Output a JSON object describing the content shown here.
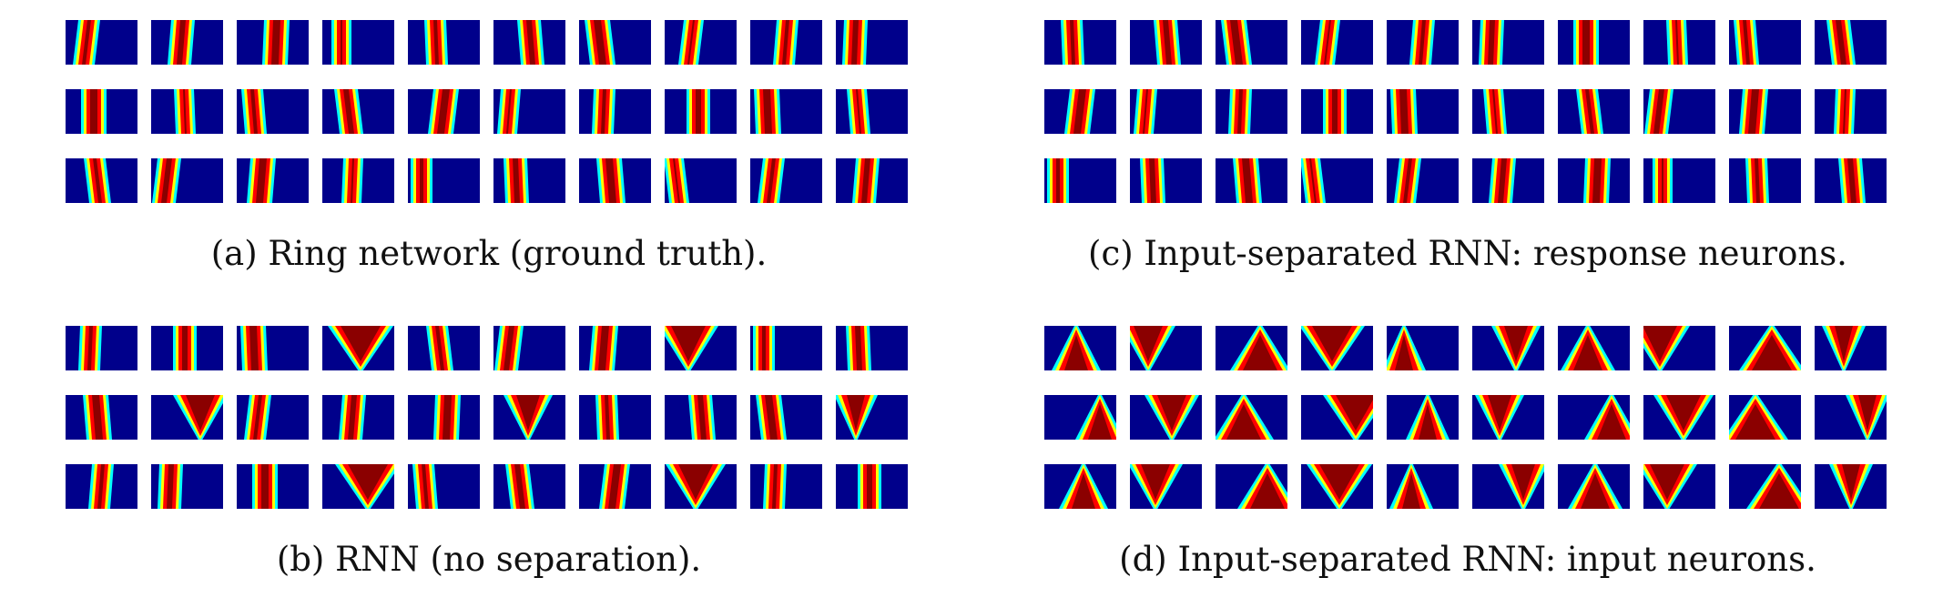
{
  "figure": {
    "panels": [
      {
        "id": "a",
        "caption": "(a) Ring network (ground truth).",
        "kind": "stripe",
        "rows": 3,
        "cols": 10
      },
      {
        "id": "b",
        "caption": "(b) RNN (no separation).",
        "kind": "mixed",
        "rows": 3,
        "cols": 10
      },
      {
        "id": "c",
        "caption": "(c) Input-separated RNN: response neurons.",
        "kind": "stripe",
        "rows": 3,
        "cols": 10
      },
      {
        "id": "d",
        "caption": "(d) Input-separated RNN: input neurons.",
        "kind": "wave",
        "rows": 3,
        "cols": 10
      }
    ],
    "colormap": [
      "#00008b",
      "#0000ff",
      "#00ffff",
      "#ffff00",
      "#ff0000",
      "#8b0000"
    ]
  }
}
